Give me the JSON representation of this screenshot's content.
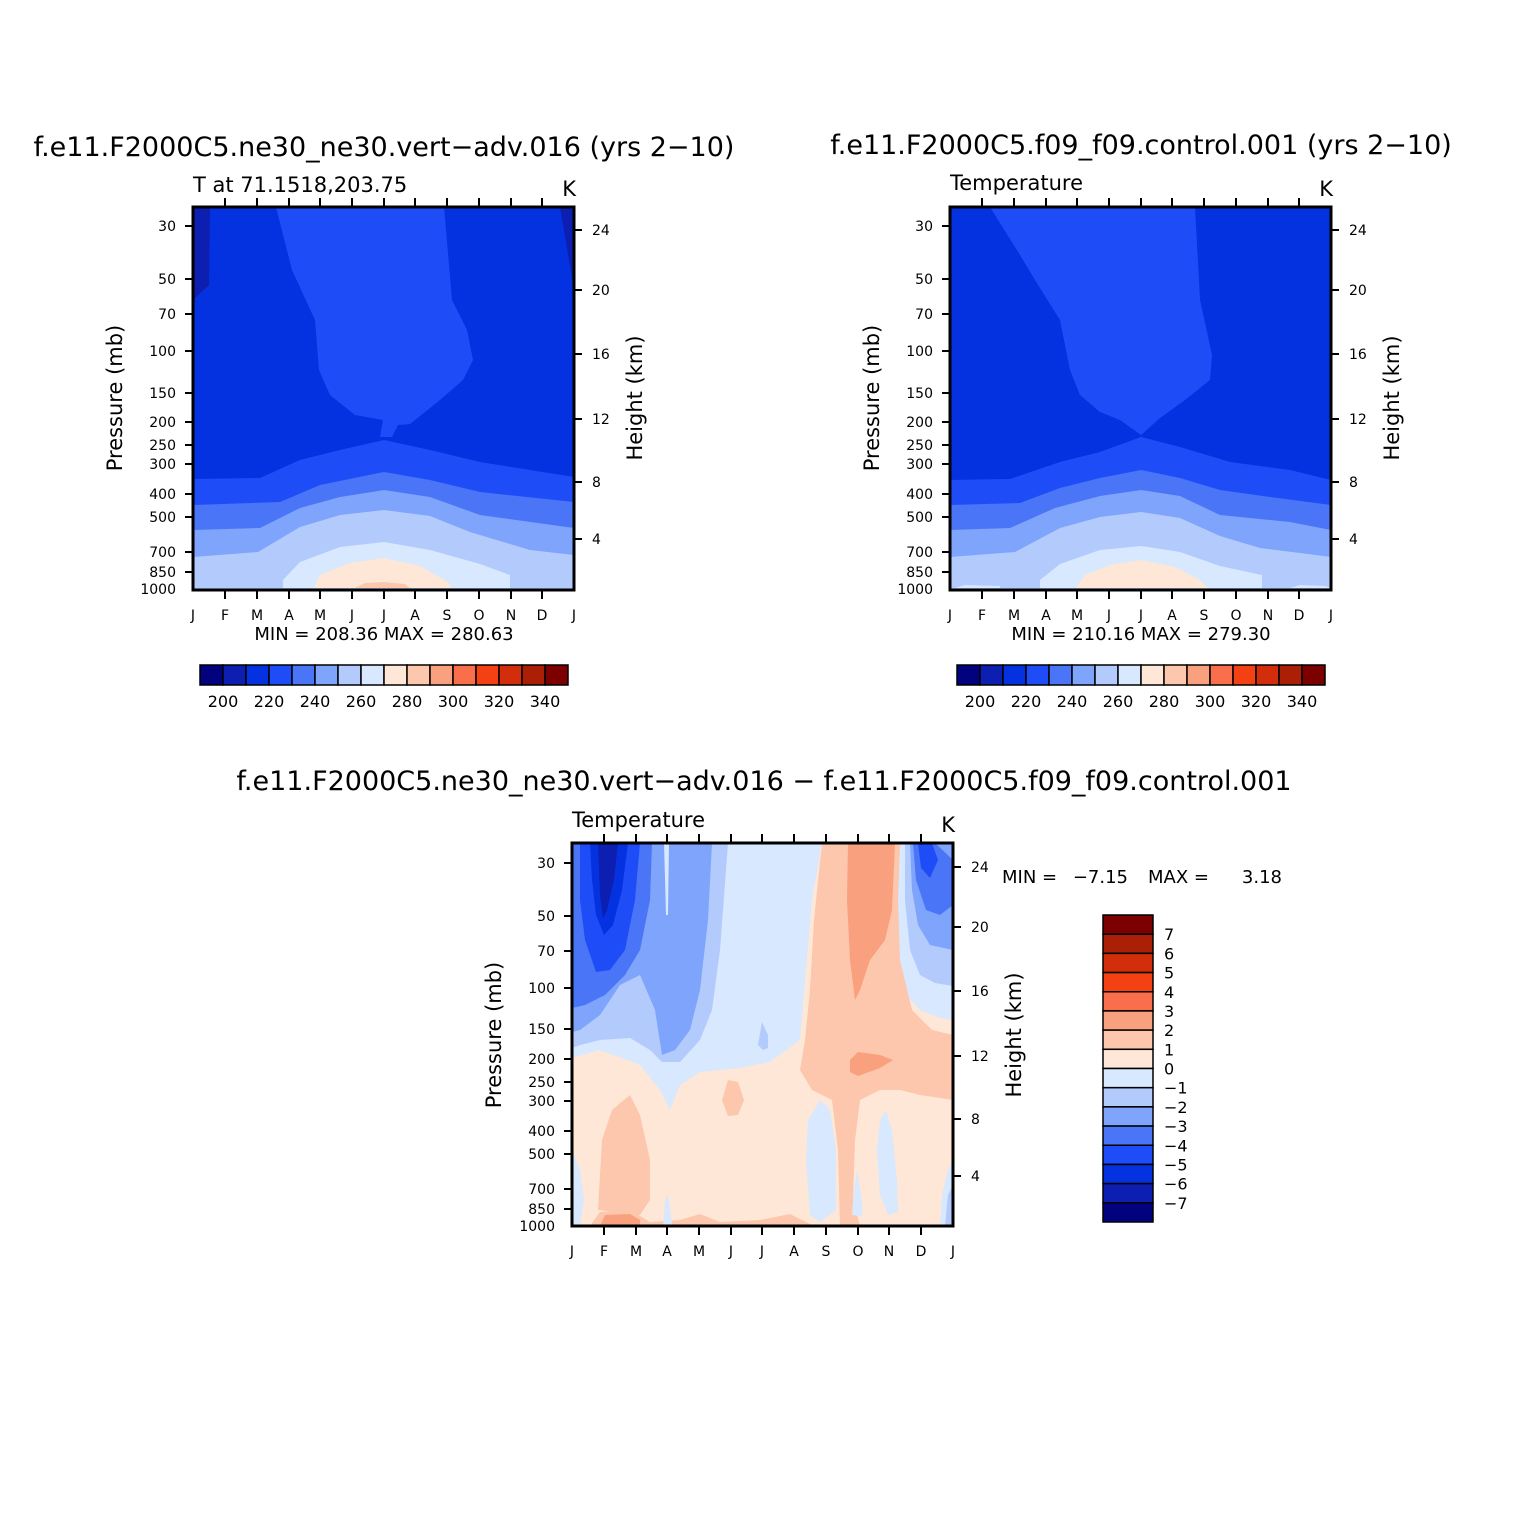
{
  "chart_data": [
    {
      "type": "heatmap",
      "title": "f.e11.F2000C5.ne30_ne30.vert−adv.016 (yrs 2−10)",
      "left_string": "T at 71.1518,203.75",
      "right_string": "K",
      "ylabel": "Pressure (mb)",
      "y2label": "Height (km)",
      "x_ticks": [
        "J",
        "F",
        "M",
        "A",
        "M",
        "J",
        "J",
        "A",
        "S",
        "O",
        "N",
        "D",
        "J"
      ],
      "y_ticks": [
        "30",
        "50",
        "70",
        "100",
        "150",
        "200",
        "250",
        "300",
        "400",
        "500",
        "700",
        "850",
        "1000"
      ],
      "y2_ticks": [
        "24",
        "20",
        "16",
        "12",
        "8",
        "4"
      ],
      "stats": "MIN = 208.36 MAX = 280.63",
      "colorbar": {
        "levels": [
          "200",
          "220",
          "240",
          "260",
          "280",
          "300",
          "320",
          "340"
        ],
        "colors": [
          "#02027e",
          "#0c1fb0",
          "#0532e0",
          "#1e4df8",
          "#4a75f7",
          "#7ea4fb",
          "#b3cafd",
          "#d8e8fe",
          "#fee7d6",
          "#fcc7ac",
          "#f9a07f",
          "#f96f4b",
          "#f44113",
          "#d22e0b",
          "#ab1f06",
          "#7c0000"
        ]
      }
    },
    {
      "type": "heatmap",
      "title": "f.e11.F2000C5.f09_f09.control.001 (yrs 2−10)",
      "left_string": "Temperature",
      "right_string": "K",
      "ylabel": "Pressure (mb)",
      "y2label": "Height (km)",
      "x_ticks": [
        "J",
        "F",
        "M",
        "A",
        "M",
        "J",
        "J",
        "A",
        "S",
        "O",
        "N",
        "D",
        "J"
      ],
      "y_ticks": [
        "30",
        "50",
        "70",
        "100",
        "150",
        "200",
        "250",
        "300",
        "400",
        "500",
        "700",
        "850",
        "1000"
      ],
      "y2_ticks": [
        "24",
        "20",
        "16",
        "12",
        "8",
        "4"
      ],
      "stats": "MIN = 210.16 MAX = 279.30",
      "colorbar": {
        "levels": [
          "200",
          "220",
          "240",
          "260",
          "280",
          "300",
          "320",
          "340"
        ],
        "colors": [
          "#02027e",
          "#0c1fb0",
          "#0532e0",
          "#1e4df8",
          "#4a75f7",
          "#7ea4fb",
          "#b3cafd",
          "#d8e8fe",
          "#fee7d6",
          "#fcc7ac",
          "#f9a07f",
          "#f96f4b",
          "#f44113",
          "#d22e0b",
          "#ab1f06",
          "#7c0000"
        ]
      }
    },
    {
      "type": "heatmap",
      "title": "f.e11.F2000C5.ne30_ne30.vert−adv.016 − f.e11.F2000C5.f09_f09.control.001",
      "left_string": "Temperature",
      "right_string": "K",
      "ylabel": "Pressure (mb)",
      "y2label": "Height (km)",
      "x_ticks": [
        "J",
        "F",
        "M",
        "A",
        "M",
        "J",
        "J",
        "A",
        "S",
        "O",
        "N",
        "D",
        "J"
      ],
      "y_ticks": [
        "30",
        "50",
        "70",
        "100",
        "150",
        "200",
        "250",
        "300",
        "400",
        "500",
        "700",
        "850",
        "1000"
      ],
      "y2_ticks": [
        "24",
        "20",
        "16",
        "12",
        "8",
        "4"
      ],
      "stats_min_label": "MIN =",
      "stats_min": "−7.15",
      "stats_max_label": "MAX =",
      "stats_max": "3.18",
      "colorbar": {
        "levels": [
          "7",
          "6",
          "5",
          "4",
          "3",
          "2",
          "1",
          "0",
          "−1",
          "−2",
          "−3",
          "−4",
          "−5",
          "−6",
          "−7"
        ],
        "colors": [
          "#7c0000",
          "#ab1f06",
          "#d22e0b",
          "#f44113",
          "#f96f4b",
          "#f9a07f",
          "#fcc7ac",
          "#fee7d6",
          "#d8e8fe",
          "#b3cafd",
          "#7ea4fb",
          "#4a75f7",
          "#1e4df8",
          "#0532e0",
          "#0c1fb0",
          "#02027e"
        ]
      }
    }
  ]
}
